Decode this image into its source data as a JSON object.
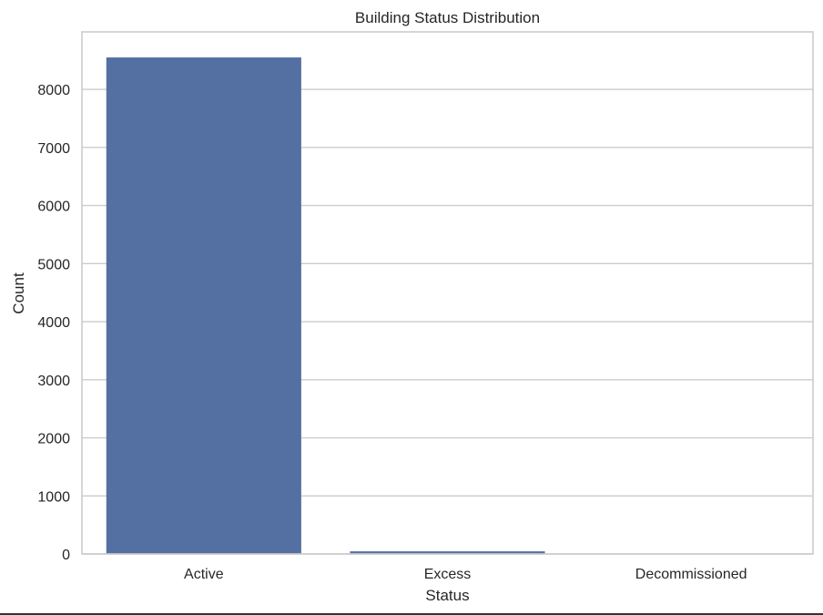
{
  "chart_data": {
    "type": "bar",
    "title": "Building Status Distribution",
    "xlabel": "Status",
    "ylabel": "Count",
    "categories": [
      "Active",
      "Excess",
      "Decommissioned"
    ],
    "values": [
      8550,
      45,
      5
    ],
    "ylim": [
      0,
      8990
    ],
    "yticks": [
      0,
      1000,
      2000,
      3000,
      4000,
      5000,
      6000,
      7000,
      8000
    ],
    "grid": "horizontal",
    "legend": "none",
    "bar_color": "#5470a3",
    "grid_color": "#cccccc",
    "text_color": "#262626"
  }
}
